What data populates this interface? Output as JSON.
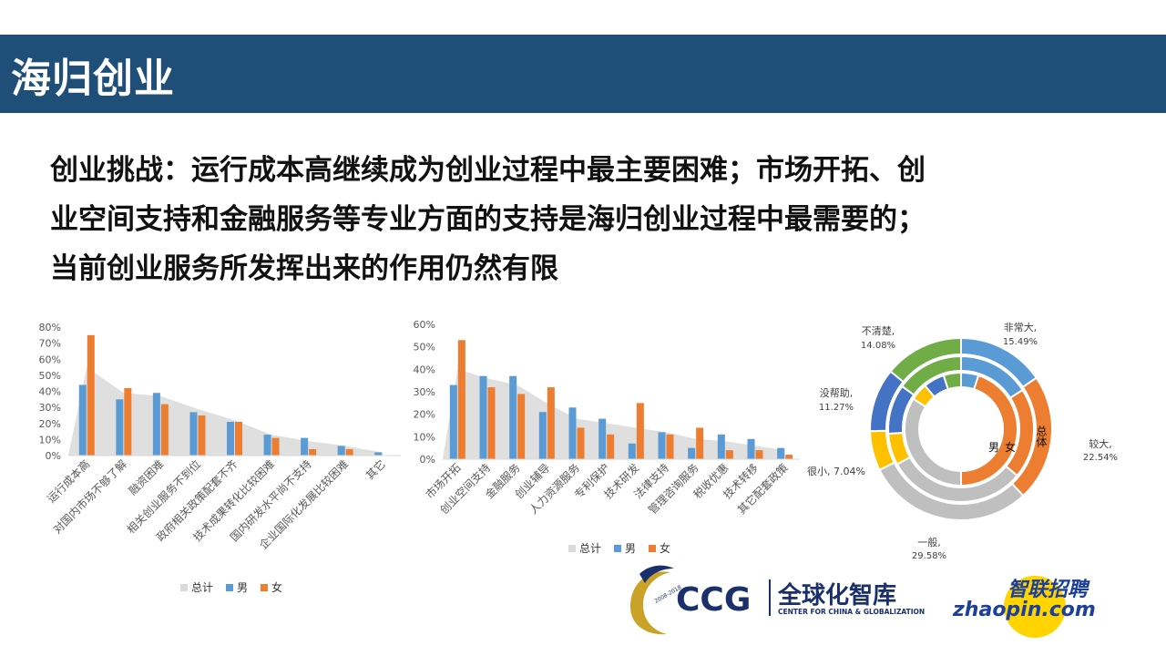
{
  "header": {
    "title": "海归创业"
  },
  "headline": {
    "lines": [
      "创业挑战：运行成本高继续成为创业过程中最主要困难；市场开拓、创",
      "业空间支持和金融服务等专业方面的支持是海归创业过程中最需要的；",
      "当前创业服务所发挥出来的作用仍然有限"
    ]
  },
  "colors": {
    "total": "#d9d9d9",
    "male": "#5b9bd5",
    "female": "#ed7d31",
    "gray_ring": "#bfbfbf",
    "yellow": "#ffc000",
    "green": "#70ad47",
    "dark_blue": "#4472c4"
  },
  "chart_data": [
    {
      "type": "bar",
      "categories": [
        "运行成本高",
        "对国内市场不够了解",
        "融资困难",
        "相关创业服务不到位",
        "政府相关政策配套不齐",
        "技术成果转化比较困难",
        "国内研发水平尚不支持",
        "企业国际化发展比较困难",
        "其它"
      ],
      "y_ticks": [
        "0%",
        "10%",
        "20%",
        "30%",
        "40%",
        "50%",
        "60%",
        "70%",
        "80%"
      ],
      "ylim": [
        0,
        80
      ],
      "series": [
        {
          "name": "总计",
          "kind": "area",
          "values": [
            55,
            39,
            37,
            29,
            22,
            13,
            9,
            6,
            2
          ]
        },
        {
          "name": "男",
          "values": [
            44,
            35,
            39,
            27,
            21,
            13,
            11,
            6,
            2
          ]
        },
        {
          "name": "女",
          "values": [
            75,
            42,
            32,
            25,
            21,
            11,
            4,
            4,
            0
          ]
        }
      ],
      "legend": [
        "总计",
        "男",
        "女"
      ]
    },
    {
      "type": "bar",
      "categories": [
        "市场开拓",
        "创业空间支持",
        "金融服务",
        "创业辅导",
        "人力资源服务",
        "专利保护",
        "技术研发",
        "法律支持",
        "管理咨询服务",
        "税收优惠",
        "技术转移",
        "其它配套政策"
      ],
      "y_ticks": [
        "0%",
        "10%",
        "20%",
        "30%",
        "40%",
        "50%",
        "60%"
      ],
      "ylim": [
        0,
        60
      ],
      "series": [
        {
          "name": "总计",
          "kind": "area",
          "values": [
            40,
            36,
            33,
            25,
            18,
            16,
            14,
            12,
            9,
            8,
            6,
            4
          ]
        },
        {
          "name": "男",
          "values": [
            33,
            37,
            37,
            21,
            23,
            18,
            7,
            12,
            5,
            11,
            9,
            5
          ]
        },
        {
          "name": "女",
          "values": [
            53,
            32,
            29,
            32,
            14,
            11,
            25,
            11,
            14,
            4,
            4,
            2
          ]
        }
      ],
      "legend": [
        "总计",
        "男",
        "女"
      ]
    },
    {
      "type": "pie",
      "rings": [
        "女",
        "男",
        "总体"
      ],
      "categories": [
        "非常大",
        "较大",
        "一般",
        "很小",
        "没帮助",
        "不清楚"
      ],
      "labels": [
        {
          "name": "非常大",
          "value": "15.49%"
        },
        {
          "name": "较大",
          "value": "22.54%"
        },
        {
          "name": "一般",
          "value": "29.58%"
        },
        {
          "name": "很小",
          "value": "7.04%"
        },
        {
          "name": "没帮助",
          "value": "11.27%"
        },
        {
          "name": "不清楚",
          "value": "14.08%"
        }
      ],
      "series": [
        {
          "name": "总体",
          "values": [
            15.49,
            22.54,
            29.58,
            7.04,
            11.27,
            14.08
          ]
        },
        {
          "name": "男",
          "values": [
            16,
            20,
            31,
            7,
            11,
            15
          ]
        },
        {
          "name": "女",
          "values": [
            5,
            45,
            34,
            5,
            6,
            5
          ]
        }
      ]
    }
  ],
  "logos": {
    "ccg_text": "CCG",
    "ccg_chinese": "全球化智库",
    "ccg_english": "CENTER FOR CHINA & GLOBALIZATION",
    "ccg_years": "2008-2018",
    "zhaopin_chinese": "智联招聘",
    "zhaopin_text": "zhaopin.com"
  }
}
